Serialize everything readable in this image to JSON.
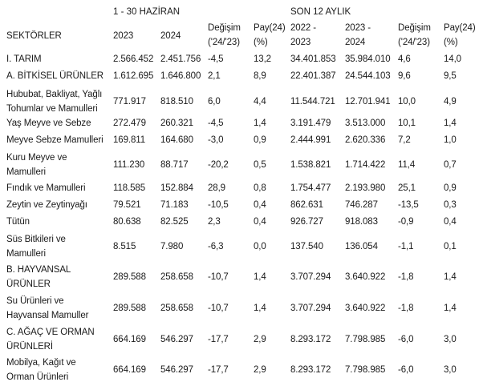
{
  "header": {
    "group_left": "1 - 30 HAZİRAN",
    "group_right": "SON 12 AYLIK",
    "sector_label": "SEKTÖRLER",
    "col_2023": "2023",
    "col_2024": "2024",
    "change_line1": "Değişim",
    "change_line2": "('24/'23)",
    "share_line1": "Pay(24)",
    "share_line2": "(%)",
    "period1_line1": "2022 -",
    "period1_line2": "2023",
    "period2_line1": "2023 -",
    "period2_line2": "2024",
    "change2_line1": "Değişim",
    "change2_line2": "('24/'23)",
    "share2_line1": "Pay(24)",
    "share2_line2": "(%)"
  },
  "rows": [
    {
      "name": [
        "I. TARIM"
      ],
      "v2023": "2.566.452",
      "v2024": "2.451.756",
      "chg": "-4,5",
      "pay": "13,2",
      "y1": "34.401.853",
      "y2": "35.984.010",
      "chg2": "4,6",
      "pay2": "14,0"
    },
    {
      "name": [
        "A. BİTKİSEL ÜRÜNLER"
      ],
      "v2023": "1.612.695",
      "v2024": "1.646.800",
      "chg": "2,1",
      "pay": "8,9",
      "y1": "22.401.387",
      "y2": "24.544.103",
      "chg2": "9,6",
      "pay2": "9,5"
    },
    {
      "name": [
        "Hububat, Bakliyat, Yağlı",
        "Tohumlar ve Mamulleri"
      ],
      "v2023": "771.917",
      "v2024": "818.510",
      "chg": "6,0",
      "pay": "4,4",
      "y1": "11.544.721",
      "y2": "12.701.941",
      "chg2": "10,0",
      "pay2": "4,9"
    },
    {
      "name": [
        "Yaş Meyve ve Sebze"
      ],
      "v2023": "272.479",
      "v2024": "260.321",
      "chg": "-4,5",
      "pay": "1,4",
      "y1": "3.191.479",
      "y2": "3.513.000",
      "chg2": "10,1",
      "pay2": "1,4"
    },
    {
      "name": [
        "Meyve Sebze Mamulleri"
      ],
      "v2023": "169.811",
      "v2024": "164.680",
      "chg": "-3,0",
      "pay": "0,9",
      "y1": "2.444.991",
      "y2": "2.620.336",
      "chg2": "7,2",
      "pay2": "1,0"
    },
    {
      "name": [
        "Kuru Meyve ve",
        "Mamulleri"
      ],
      "v2023": "111.230",
      "v2024": "88.717",
      "chg": "-20,2",
      "pay": "0,5",
      "y1": "1.538.821",
      "y2": "1.714.422",
      "chg2": "11,4",
      "pay2": "0,7"
    },
    {
      "name": [
        "Fındık ve Mamulleri"
      ],
      "v2023": "118.585",
      "v2024": "152.884",
      "chg": "28,9",
      "pay": "0,8",
      "y1": "1.754.477",
      "y2": "2.193.980",
      "chg2": "25,1",
      "pay2": "0,9"
    },
    {
      "name": [
        "Zeytin ve Zeytinyağı"
      ],
      "v2023": "79.521",
      "v2024": "71.183",
      "chg": "-10,5",
      "pay": "0,4",
      "y1": "862.631",
      "y2": "746.287",
      "chg2": "-13,5",
      "pay2": "0,3"
    },
    {
      "name": [
        "Tütün"
      ],
      "v2023": "80.638",
      "v2024": "82.525",
      "chg": "2,3",
      "pay": "0,4",
      "y1": "926.727",
      "y2": "918.083",
      "chg2": "-0,9",
      "pay2": "0,4"
    },
    {
      "name": [
        "Süs Bitkileri ve",
        "Mamulleri"
      ],
      "v2023": "8.515",
      "v2024": "7.980",
      "chg": "-6,3",
      "pay": "0,0",
      "y1": "137.540",
      "y2": "136.054",
      "chg2": "-1,1",
      "pay2": "0,1"
    },
    {
      "name": [
        "B. HAYVANSAL",
        "ÜRÜNLER"
      ],
      "v2023": "289.588",
      "v2024": "258.658",
      "chg": "-10,7",
      "pay": "1,4",
      "y1": "3.707.294",
      "y2": "3.640.922",
      "chg2": "-1,8",
      "pay2": "1,4"
    },
    {
      "name": [
        "Su Ürünleri ve",
        "Hayvansal Mamuller"
      ],
      "v2023": "289.588",
      "v2024": "258.658",
      "chg": "-10,7",
      "pay": "1,4",
      "y1": "3.707.294",
      "y2": "3.640.922",
      "chg2": "-1,8",
      "pay2": "1,4"
    },
    {
      "name": [
        "C. AĞAÇ VE ORMAN",
        "ÜRÜNLERİ"
      ],
      "v2023": "664.169",
      "v2024": "546.297",
      "chg": "-17,7",
      "pay": "2,9",
      "y1": "8.293.172",
      "y2": "7.798.985",
      "chg2": "-6,0",
      "pay2": "3,0"
    },
    {
      "name": [
        "Mobilya, Kağıt ve",
        "Orman Ürünleri"
      ],
      "v2023": "664.169",
      "v2024": "546.297",
      "chg": "-17,7",
      "pay": "2,9",
      "y1": "8.293.172",
      "y2": "7.798.985",
      "chg2": "-6,0",
      "pay2": "3,0"
    }
  ]
}
